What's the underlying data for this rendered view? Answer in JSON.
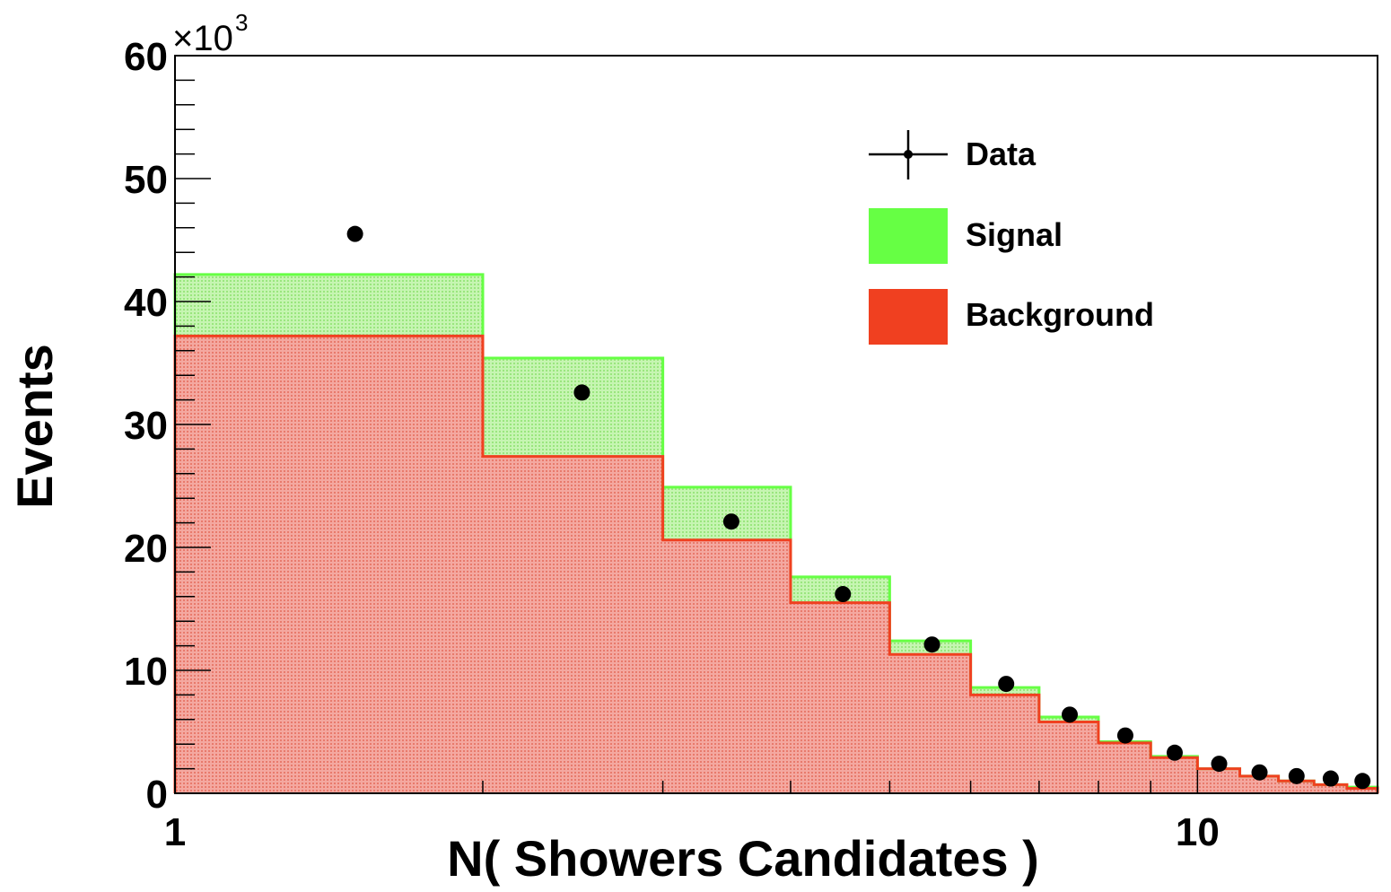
{
  "chart_data": {
    "type": "bar",
    "xlabel": "N( Showers Candidates )",
    "ylabel": "Events",
    "y_multiplier": "×10",
    "y_multiplier_exp": "3",
    "xscale": "log",
    "xlim": [
      1,
      15
    ],
    "ylim": [
      0,
      60
    ],
    "grid": false,
    "legend_position": "top-right",
    "bin_edges": [
      1,
      2,
      3,
      4,
      5,
      6,
      7,
      8,
      9,
      10,
      11,
      12,
      13,
      14,
      15
    ],
    "series": [
      {
        "name": "Signal",
        "kind": "stacked-histogram-total",
        "color": "#66ff44",
        "values": [
          42.2,
          35.4,
          24.9,
          17.6,
          12.4,
          8.6,
          6.2,
          4.2,
          3.0,
          2.0,
          1.4,
          1.0,
          0.7,
          0.5
        ]
      },
      {
        "name": "Background",
        "kind": "histogram",
        "color": "#f04020",
        "values": [
          37.2,
          27.4,
          20.6,
          15.5,
          11.3,
          8.0,
          5.8,
          4.1,
          2.9,
          2.0,
          1.4,
          1.0,
          0.7,
          0.4
        ]
      },
      {
        "name": "Data",
        "kind": "points",
        "color": "#000000",
        "x": [
          1.5,
          2.5,
          3.5,
          4.5,
          5.5,
          6.5,
          7.5,
          8.5,
          9.5,
          10.5,
          11.5,
          12.5,
          13.5,
          14.5
        ],
        "values": [
          45.5,
          32.6,
          22.1,
          16.2,
          12.1,
          8.9,
          6.4,
          4.7,
          3.3,
          2.4,
          1.7,
          1.4,
          1.2,
          1.0
        ]
      }
    ],
    "y_major_ticks": [
      {
        "value": 0,
        "label": "0"
      },
      {
        "value": 10,
        "label": "10"
      },
      {
        "value": 20,
        "label": "20"
      },
      {
        "value": 30,
        "label": "30"
      },
      {
        "value": 40,
        "label": "40"
      },
      {
        "value": 50,
        "label": "50"
      },
      {
        "value": 60,
        "label": "60"
      }
    ],
    "x_labeled_ticks": [
      {
        "value": 1,
        "label": "1"
      },
      {
        "value": 10,
        "label": "10"
      }
    ],
    "x_minor_ticks": [
      2,
      3,
      4,
      5,
      6,
      7,
      8,
      9
    ]
  }
}
